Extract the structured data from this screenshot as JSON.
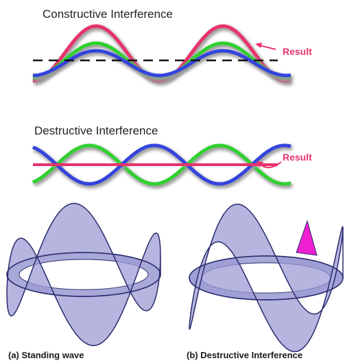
{
  "constructive": {
    "title": "Constructive Interference",
    "result": "Result"
  },
  "destructive": {
    "title": "Destructive Interference",
    "result": "Result"
  },
  "captions": [
    "(a) Standing wave",
    "(b) Destructive Interference"
  ]
}
